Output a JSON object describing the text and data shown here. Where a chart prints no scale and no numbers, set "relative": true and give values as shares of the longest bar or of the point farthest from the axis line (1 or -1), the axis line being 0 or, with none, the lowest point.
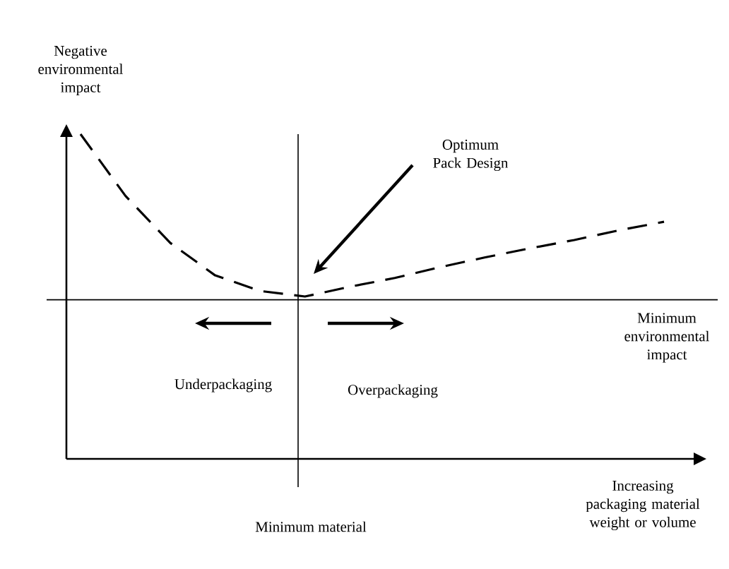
{
  "chart_data": {
    "type": "line",
    "relative": true,
    "ylabel": "Negative environmental impact",
    "xlabel": "Increasing packaging material weight or volume",
    "categories": [
      null,
      null,
      null,
      null,
      null,
      null,
      null,
      null,
      null,
      null,
      null,
      null,
      null,
      null
    ],
    "series": [
      {
        "color": "#000000",
        "values": [
          1.0,
          0.81,
          0.665,
          0.565,
          0.517,
          0.5,
          0.53,
          0.557,
          0.59,
          0.62,
          0.648,
          0.674,
          0.704,
          0.73
        ]
      }
    ],
    "line_style": "dashed",
    "marker": "none",
    "ref_lines": [
      {
        "axis": "y",
        "value": 0.49,
        "label": "Minimum environmental impact"
      }
    ],
    "annotations": [
      "Optimum Pack Design",
      "Underpackaging",
      "Overpackaging",
      "Minimum material"
    ]
  }
}
